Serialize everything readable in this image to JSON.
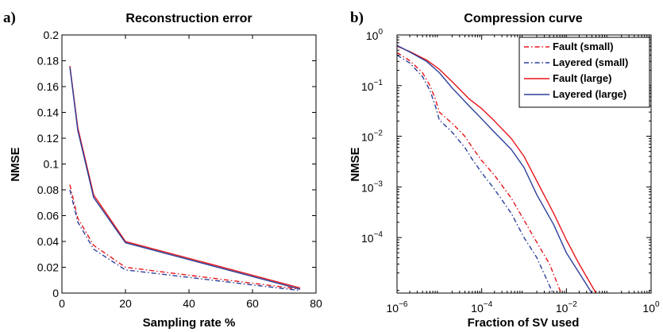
{
  "chart_data": [
    {
      "panel_label": "a)",
      "type": "line",
      "title": "Reconstruction error",
      "xlabel": "Sampling rate %",
      "ylabel": "NMSE",
      "xlim": [
        0,
        80
      ],
      "ylim": [
        0,
        0.2
      ],
      "xticks": [
        0,
        20,
        40,
        60,
        80
      ],
      "xtick_labels": [
        "0",
        "20",
        "40",
        "60",
        "80"
      ],
      "yticks": [
        0,
        0.02,
        0.04,
        0.06,
        0.08,
        0.1,
        0.12,
        0.14,
        0.16,
        0.18,
        0.2
      ],
      "ytick_labels": [
        "0",
        "0.02",
        "0.04",
        "0.06",
        "0.08",
        "0.1",
        "0.12",
        "0.14",
        "0.16",
        "0.18",
        "0.2"
      ],
      "grid": false,
      "series": [
        {
          "name": "Fault (small)",
          "color": "#e8151b",
          "style": "dashdot",
          "x": [
            2.5,
            5,
            10,
            20,
            75
          ],
          "y": [
            0.084,
            0.058,
            0.037,
            0.02,
            0.003
          ]
        },
        {
          "name": "Layered (small)",
          "color": "#2b3f99",
          "style": "dashdot",
          "x": [
            2.5,
            5,
            10,
            20,
            75
          ],
          "y": [
            0.08,
            0.055,
            0.034,
            0.018,
            0.002
          ]
        },
        {
          "name": "Fault (large)",
          "color": "#e8151b",
          "style": "solid",
          "x": [
            2.5,
            5,
            10,
            20,
            75
          ],
          "y": [
            0.176,
            0.128,
            0.076,
            0.04,
            0.004
          ]
        },
        {
          "name": "Layered (large)",
          "color": "#2b3f99",
          "style": "solid",
          "x": [
            2.5,
            5,
            10,
            20,
            75
          ],
          "y": [
            0.175,
            0.126,
            0.074,
            0.039,
            0.003
          ]
        }
      ]
    },
    {
      "panel_label": "b)",
      "type": "line",
      "title": "Compression curve",
      "xlabel": "Fraction of SV used",
      "ylabel": "NMSE",
      "xscale": "log",
      "yscale": "log",
      "xlim": [
        1e-06,
        1
      ],
      "ylim": [
        8e-06,
        1
      ],
      "xticks": [
        1e-06,
        0.0001,
        0.01,
        1
      ],
      "xtick_base": [
        "10",
        "10",
        "10",
        "10"
      ],
      "xtick_exp": [
        "−6",
        "−4",
        "−2",
        "0"
      ],
      "yticks": [
        1,
        0.1,
        0.01,
        0.001,
        0.0001
      ],
      "ytick_base": [
        "10",
        "10",
        "10",
        "10",
        "10"
      ],
      "ytick_exp": [
        "0",
        "−1",
        "−2",
        "−3",
        "−4"
      ],
      "grid": false,
      "legend_position": "top-right",
      "series": [
        {
          "name": "Fault (small)",
          "color": "#e8151b",
          "style": "dashdot",
          "x": [
            1e-06,
            2e-06,
            4e-06,
            6e-06,
            8e-06,
            1e-05,
            2e-05,
            4e-05,
            6e-05,
            0.0001,
            0.0002,
            0.0005,
            0.001,
            0.002,
            0.004,
            0.0075
          ],
          "y": [
            0.45,
            0.31,
            0.18,
            0.1,
            0.055,
            0.03,
            0.018,
            0.01,
            0.006,
            0.0033,
            0.0017,
            0.0006,
            0.00022,
            8e-05,
            3e-05,
            8e-06
          ]
        },
        {
          "name": "Layered (small)",
          "color": "#2b3f99",
          "style": "dashdot",
          "x": [
            1e-06,
            2e-06,
            4e-06,
            6e-06,
            8e-06,
            1e-05,
            2e-05,
            4e-05,
            6e-05,
            0.0001,
            0.0002,
            0.0005,
            0.001,
            0.002,
            0.0048
          ],
          "y": [
            0.4,
            0.28,
            0.15,
            0.08,
            0.04,
            0.021,
            0.012,
            0.006,
            0.0035,
            0.0019,
            0.0009,
            0.0003,
            0.0001,
            4e-05,
            8e-06
          ]
        },
        {
          "name": "Fault (large)",
          "color": "#e8151b",
          "style": "solid",
          "x": [
            1e-06,
            2e-06,
            5e-06,
            1e-05,
            2e-05,
            5e-05,
            0.0001,
            0.0002,
            0.0005,
            0.001,
            0.002,
            0.005,
            0.01,
            0.02,
            0.05
          ],
          "y": [
            0.6,
            0.47,
            0.32,
            0.21,
            0.12,
            0.055,
            0.035,
            0.02,
            0.009,
            0.004,
            0.0013,
            0.0003,
            9e-05,
            3e-05,
            8e-06
          ]
        },
        {
          "name": "Layered (large)",
          "color": "#2b3f99",
          "style": "solid",
          "x": [
            1e-06,
            2e-06,
            5e-06,
            1e-05,
            2e-05,
            5e-05,
            0.0001,
            0.0002,
            0.0005,
            0.001,
            0.002,
            0.005,
            0.01,
            0.02,
            0.04
          ],
          "y": [
            0.62,
            0.46,
            0.3,
            0.18,
            0.09,
            0.04,
            0.022,
            0.012,
            0.0055,
            0.0024,
            0.0007,
            0.00018,
            5e-05,
            2e-05,
            8e-06
          ]
        }
      ]
    }
  ]
}
